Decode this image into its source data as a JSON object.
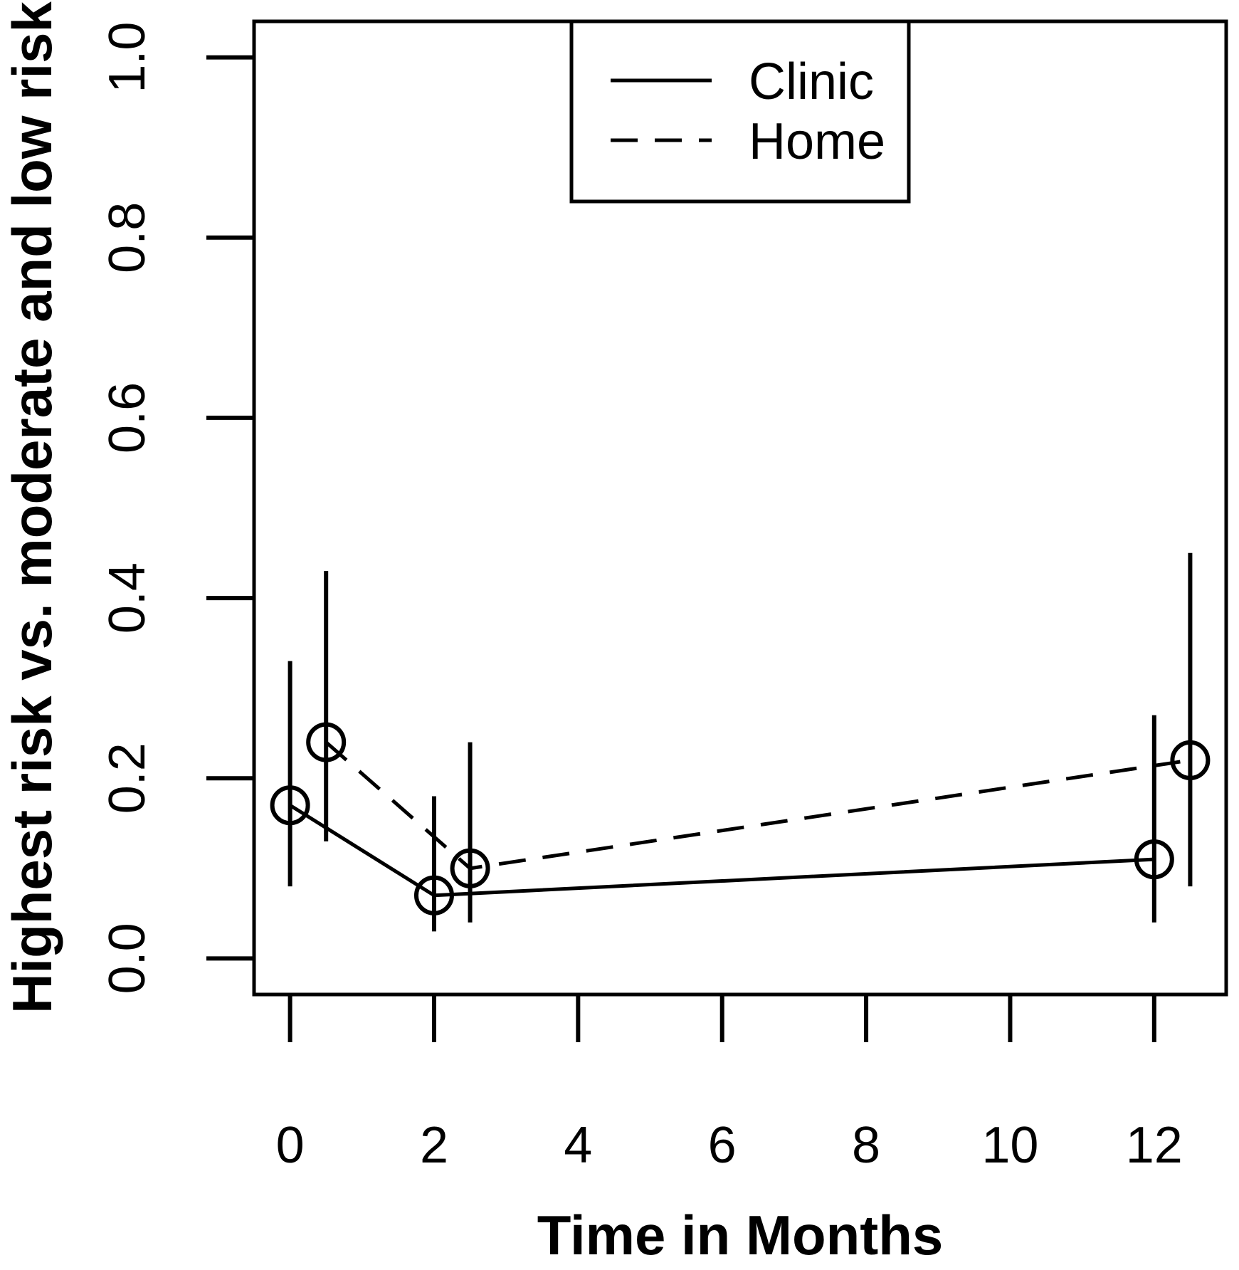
{
  "chart_data": {
    "type": "line",
    "title": "",
    "xlabel": "Time in Months",
    "ylabel": "Highest risk vs. moderate and low risk",
    "x_ticks": [
      "0",
      "2",
      "4",
      "6",
      "8",
      "10",
      "12"
    ],
    "x_tick_values": [
      0,
      2,
      4,
      6,
      8,
      10,
      12
    ],
    "y_ticks": [
      "0.0",
      "0.2",
      "0.4",
      "0.6",
      "0.8",
      "1.0"
    ],
    "y_tick_values": [
      0.0,
      0.2,
      0.4,
      0.6,
      0.8,
      1.0
    ],
    "xlim": [
      -0.5,
      13.0
    ],
    "ylim": [
      -0.04,
      1.04
    ],
    "grid": "off",
    "background_color": "#ffffff",
    "line_color": "#000000",
    "marker": "open-circle",
    "error_bars": "vertical, no caps",
    "legend": {
      "position": "top-center-inside",
      "border": "on",
      "entries": [
        {
          "label": "Clinic",
          "line_style": "solid"
        },
        {
          "label": "Home",
          "line_style": "dashed"
        }
      ]
    },
    "series": [
      {
        "name": "Clinic",
        "line_style": "solid",
        "points": [
          {
            "x": 0,
            "y": 0.17,
            "ci_low": 0.08,
            "ci_high": 0.33
          },
          {
            "x": 2,
            "y": 0.07,
            "ci_low": 0.03,
            "ci_high": 0.18
          },
          {
            "x": 12,
            "y": 0.11,
            "ci_low": 0.04,
            "ci_high": 0.27
          }
        ]
      },
      {
        "name": "Home",
        "line_style": "dashed",
        "points": [
          {
            "x": 0.5,
            "y": 0.24,
            "ci_low": 0.13,
            "ci_high": 0.43
          },
          {
            "x": 2.5,
            "y": 0.1,
            "ci_low": 0.04,
            "ci_high": 0.24
          },
          {
            "x": 12.5,
            "y": 0.22,
            "ci_low": 0.08,
            "ci_high": 0.45
          }
        ]
      }
    ]
  }
}
